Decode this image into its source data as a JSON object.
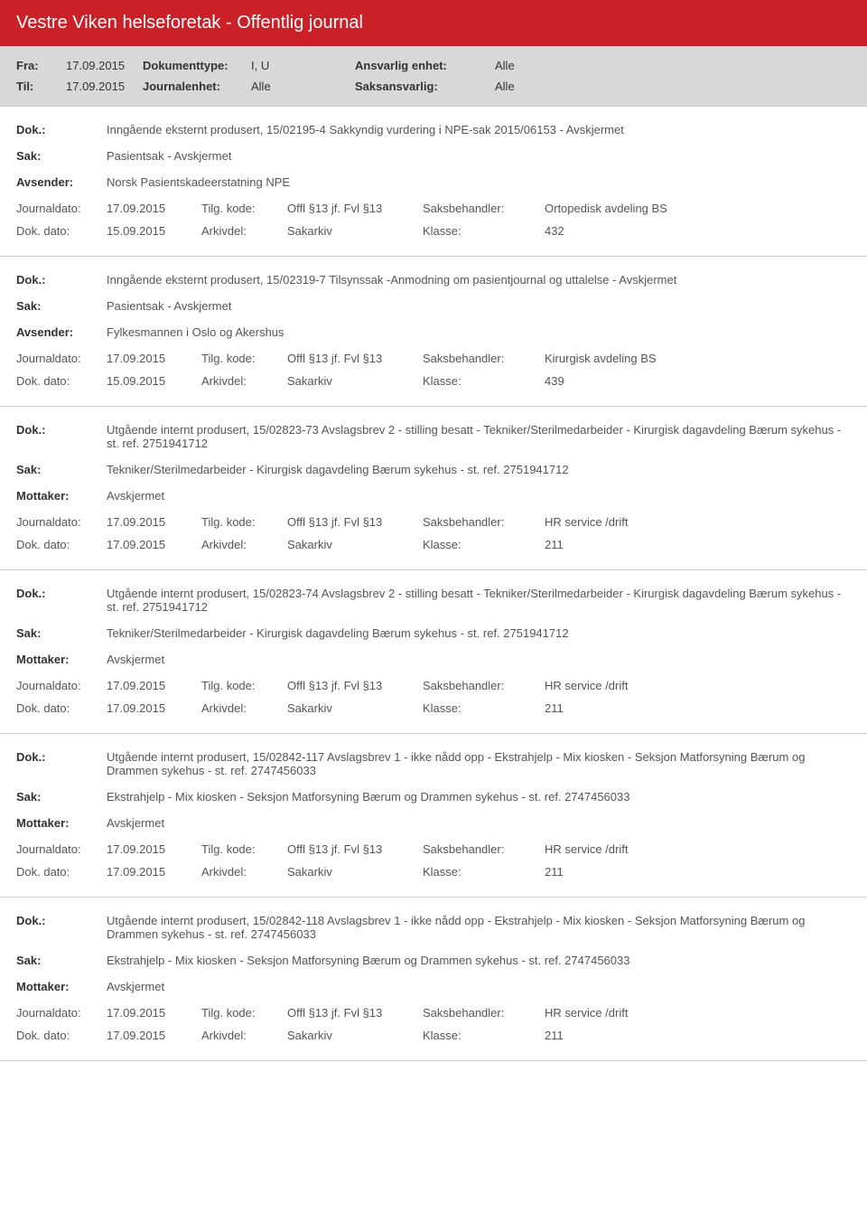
{
  "header": {
    "title": "Vestre Viken helseforetak - Offentlig journal",
    "fra_label": "Fra:",
    "fra_value": "17.09.2015",
    "til_label": "Til:",
    "til_value": "17.09.2015",
    "doktype_label": "Dokumenttype:",
    "doktype_value": "I, U",
    "journalenhet_label": "Journalenhet:",
    "journalenhet_value": "Alle",
    "ansvarlig_label": "Ansvarlig enhet:",
    "ansvarlig_value": "Alle",
    "saksansvarlig_label": "Saksansvarlig:",
    "saksansvarlig_value": "Alle"
  },
  "labels": {
    "dok": "Dok.:",
    "sak": "Sak:",
    "avsender": "Avsender:",
    "mottaker": "Mottaker:",
    "journaldato": "Journaldato:",
    "dokdato": "Dok. dato:",
    "tilgkode": "Tilg. kode:",
    "arkivdel": "Arkivdel:",
    "saksbehandler": "Saksbehandler:",
    "klasse": "Klasse:"
  },
  "records": [
    {
      "dok": "Inngående eksternt produsert, 15/02195-4 Sakkyndig vurdering i NPE-sak 2015/06153 - Avskjermet",
      "sak": "Pasientsak - Avskjermet",
      "party_label": "Avsender:",
      "party": "Norsk Pasientskadeerstatning NPE",
      "journaldato": "17.09.2015",
      "tilgkode": "Offl §13 jf. Fvl §13",
      "saksbehandler": "Ortopedisk avdeling BS",
      "dokdato": "15.09.2015",
      "arkivdel": "Sakarkiv",
      "klasse": "432"
    },
    {
      "dok": "Inngående eksternt produsert, 15/02319-7 Tilsynssak  -Anmodning om pasientjournal og uttalelse - Avskjermet",
      "sak": "Pasientsak - Avskjermet",
      "party_label": "Avsender:",
      "party": "Fylkesmannen i Oslo og Akershus",
      "journaldato": "17.09.2015",
      "tilgkode": "Offl §13 jf. Fvl §13",
      "saksbehandler": "Kirurgisk avdeling BS",
      "dokdato": "15.09.2015",
      "arkivdel": "Sakarkiv",
      "klasse": "439"
    },
    {
      "dok": "Utgående internt produsert, 15/02823-73 Avslagsbrev 2 - stilling besatt - Tekniker/Sterilmedarbeider - Kirurgisk dagavdeling Bærum sykehus - st. ref. 2751941712",
      "sak": "Tekniker/Sterilmedarbeider - Kirurgisk dagavdeling Bærum sykehus - st. ref. 2751941712",
      "party_label": "Mottaker:",
      "party": "Avskjermet",
      "journaldato": "17.09.2015",
      "tilgkode": "Offl §13 jf. Fvl §13",
      "saksbehandler": "HR service /drift",
      "dokdato": "17.09.2015",
      "arkivdel": "Sakarkiv",
      "klasse": "211"
    },
    {
      "dok": "Utgående internt produsert, 15/02823-74 Avslagsbrev 2 - stilling besatt - Tekniker/Sterilmedarbeider - Kirurgisk dagavdeling Bærum sykehus - st. ref. 2751941712",
      "sak": "Tekniker/Sterilmedarbeider - Kirurgisk dagavdeling Bærum sykehus - st. ref. 2751941712",
      "party_label": "Mottaker:",
      "party": "Avskjermet",
      "journaldato": "17.09.2015",
      "tilgkode": "Offl §13 jf. Fvl §13",
      "saksbehandler": "HR service /drift",
      "dokdato": "17.09.2015",
      "arkivdel": "Sakarkiv",
      "klasse": "211"
    },
    {
      "dok": "Utgående internt produsert, 15/02842-117 Avslagsbrev 1 - ikke nådd opp - Ekstrahjelp - Mix kiosken - Seksjon Matforsyning Bærum og Drammen sykehus - st. ref. 2747456033",
      "sak": "Ekstrahjelp - Mix kiosken - Seksjon Matforsyning Bærum og Drammen sykehus - st. ref. 2747456033",
      "party_label": "Mottaker:",
      "party": "Avskjermet",
      "journaldato": "17.09.2015",
      "tilgkode": "Offl §13 jf. Fvl §13",
      "saksbehandler": "HR service /drift",
      "dokdato": "17.09.2015",
      "arkivdel": "Sakarkiv",
      "klasse": "211"
    },
    {
      "dok": "Utgående internt produsert, 15/02842-118 Avslagsbrev 1 - ikke nådd opp - Ekstrahjelp - Mix kiosken - Seksjon Matforsyning Bærum og Drammen sykehus - st. ref. 2747456033",
      "sak": "Ekstrahjelp - Mix kiosken - Seksjon Matforsyning Bærum og Drammen sykehus - st. ref. 2747456033",
      "party_label": "Mottaker:",
      "party": "Avskjermet",
      "journaldato": "17.09.2015",
      "tilgkode": "Offl §13 jf. Fvl §13",
      "saksbehandler": "HR service /drift",
      "dokdato": "17.09.2015",
      "arkivdel": "Sakarkiv",
      "klasse": "211"
    }
  ]
}
